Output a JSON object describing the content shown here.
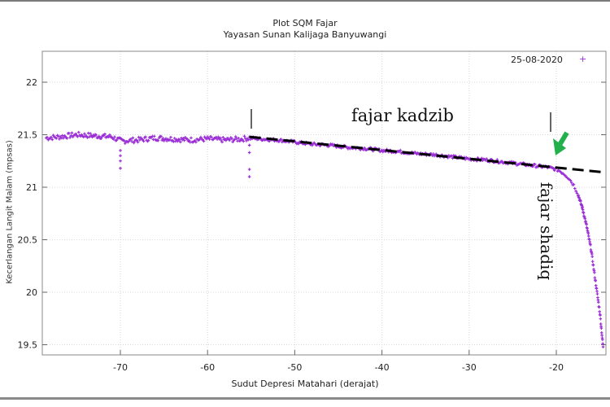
{
  "chart_data": {
    "type": "scatter",
    "title": "Plot SQM Fajar",
    "subtitle": "Yayasan Sunan Kalijaga Banyuwangi",
    "xlabel": "Sudut Depresi Matahari (derajat)",
    "ylabel": "Kecerlangan Langit Malam (mpsas)",
    "xlim": [
      -78.6,
      -14.3
    ],
    "ylim": [
      19.4,
      22.3
    ],
    "xticks": [
      -70,
      -60,
      -50,
      -40,
      -30,
      -20
    ],
    "yticks": [
      19.5,
      20,
      20.5,
      21,
      21.5,
      22
    ],
    "grid": true,
    "legend": {
      "position": "top-right",
      "entries": [
        "25-08-2020"
      ]
    },
    "series": [
      {
        "name": "25-08-2020",
        "color": "#9b2fd6",
        "marker": "+",
        "x": [
          -78.5,
          -77,
          -75,
          -73,
          -71,
          -70.2,
          -69.8,
          -68,
          -66,
          -64,
          -62,
          -60,
          -58,
          -56,
          -55.2,
          -54,
          -52,
          -50,
          -48,
          -46,
          -44,
          -42,
          -40,
          -38,
          -36,
          -34,
          -32,
          -30,
          -28,
          -26,
          -24,
          -22,
          -21,
          -20,
          -19.5,
          -19,
          -18.5,
          -18,
          -17.5,
          -17,
          -16.5,
          -16,
          -15.5,
          -15,
          -14.6
        ],
        "y": [
          21.47,
          21.48,
          21.5,
          21.49,
          21.48,
          21.45,
          21.44,
          21.45,
          21.47,
          21.46,
          21.45,
          21.46,
          21.45,
          21.46,
          21.47,
          21.46,
          21.45,
          21.43,
          21.41,
          21.4,
          21.38,
          21.37,
          21.35,
          21.34,
          21.32,
          21.31,
          21.29,
          21.27,
          21.26,
          21.24,
          21.22,
          21.2,
          21.19,
          21.17,
          21.15,
          21.12,
          21.08,
          21.02,
          20.93,
          20.8,
          20.62,
          20.4,
          20.1,
          19.8,
          19.45
        ]
      }
    ],
    "outliers": [
      {
        "x": -70,
        "y": 21.35
      },
      {
        "x": -70,
        "y": 21.3
      },
      {
        "x": -70,
        "y": 21.25
      },
      {
        "x": -70,
        "y": 21.18
      },
      {
        "x": -55.2,
        "y": 21.4
      },
      {
        "x": -55.2,
        "y": 21.33
      },
      {
        "x": -55.2,
        "y": 21.17
      },
      {
        "x": -55.2,
        "y": 21.1
      }
    ],
    "trendline": {
      "style": "dashed",
      "color": "#000000",
      "x": [
        -55.2,
        -14.3
      ],
      "y": [
        21.48,
        21.14
      ]
    },
    "annotations": [
      {
        "text": "fajar kadzib",
        "x_range": [
          -55.2,
          -20.8
        ]
      },
      {
        "text": "fajar shadiq",
        "orientation": "vertical"
      },
      {
        "type": "arrow",
        "color": "#22b04a",
        "points_to": {
          "x": -20.3,
          "y": 21.19
        }
      }
    ]
  },
  "header": {
    "title": "Plot SQM Fajar",
    "subtitle": "Yayasan Sunan Kalijaga Banyuwangi"
  },
  "axes": {
    "xlabel": "Sudut Depresi Matahari (derajat)",
    "ylabel": "Kecerlangan Langit Malam (mpsas)"
  },
  "legend": {
    "label": "25-08-2020",
    "marker": "+"
  },
  "annotations": {
    "kadzib": "fajar kadzib",
    "shadiq": "fajar shadiq"
  },
  "colors": {
    "series": "#9b2fd6",
    "arrow": "#22b04a",
    "trend": "#000000",
    "grid": "#d8d8d8",
    "axis": "#888888"
  }
}
